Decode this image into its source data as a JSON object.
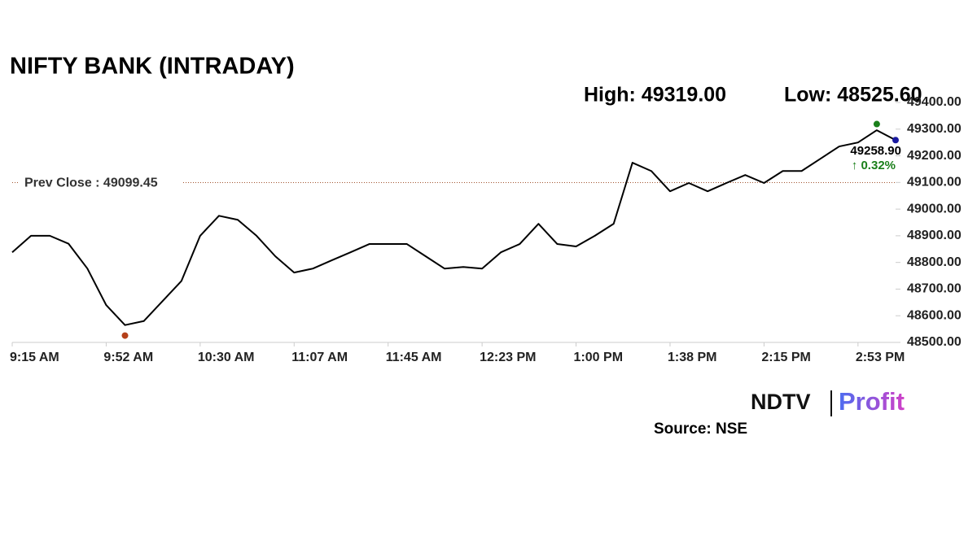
{
  "chart_data": {
    "type": "line",
    "title": "NIFTY BANK (INTRADAY)",
    "high_label": "High: 49319.00",
    "high": 49319.0,
    "low_label": "Low: 48525.60",
    "low": 48525.6,
    "prev_close": 49099.45,
    "prev_close_label": "Prev Close : 49099.45",
    "last_label": "49258.90",
    "change": 0.32,
    "change_label": "↑ 0.32%",
    "categories": [
      "9:15 AM",
      null,
      null,
      null,
      null,
      "9:52 AM",
      null,
      null,
      null,
      null,
      "10:30 AM",
      null,
      null,
      null,
      null,
      "11:07 AM",
      null,
      null,
      null,
      null,
      "11:45 AM",
      null,
      null,
      null,
      null,
      "12:23 PM",
      null,
      null,
      null,
      null,
      "1:00 PM",
      null,
      null,
      null,
      null,
      "1:38 PM",
      null,
      null,
      null,
      null,
      "2:15 PM",
      null,
      null,
      null,
      null,
      "2:53 PM",
      null,
      null
    ],
    "series": [
      {
        "name": "NIFTY BANK",
        "color": "#000000",
        "values": [
          48838,
          48900,
          48900,
          48870,
          48777,
          48640,
          48565,
          48580,
          48655,
          48730,
          48900,
          48975,
          48960,
          48900,
          48823,
          48762,
          48777,
          48808,
          48838,
          48869,
          48869,
          48869,
          48823,
          48777,
          48783,
          48777,
          48838,
          48869,
          48945,
          48869,
          48860,
          48900,
          48945,
          49174,
          49143,
          49067,
          49098,
          49067,
          49098,
          49128,
          49098,
          49143,
          49143,
          49189,
          49235,
          49250,
          49296,
          49258.9
        ]
      }
    ],
    "ylim": [
      48500,
      49400
    ],
    "yticks": [
      {
        "value": 48500,
        "label": "48500.00"
      },
      {
        "value": 48600,
        "label": "48600.00"
      },
      {
        "value": 48700,
        "label": "48700.00"
      },
      {
        "value": 48800,
        "label": "48800.00"
      },
      {
        "value": 48900,
        "label": "48900.00"
      },
      {
        "value": 49000,
        "label": "49000.00"
      },
      {
        "value": 49100,
        "label": "49100.00"
      },
      {
        "value": 49200,
        "label": "49200.00"
      },
      {
        "value": 49300,
        "label": "49300.00"
      },
      {
        "value": 49400,
        "label": "49400.00"
      }
    ],
    "grid": false,
    "logo": {
      "left": "NDTV",
      "right": "Profit"
    },
    "source": "Source: NSE"
  }
}
